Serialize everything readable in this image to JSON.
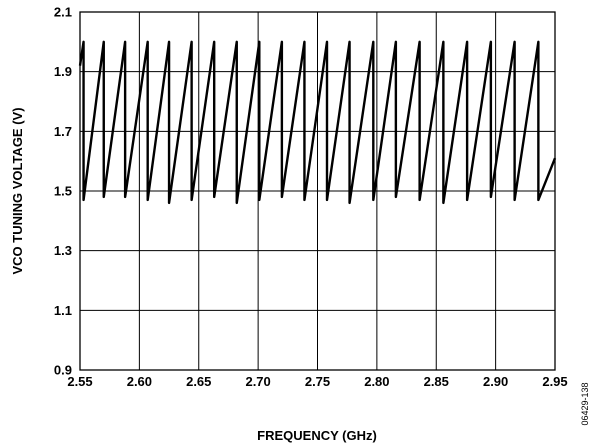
{
  "chart_data": {
    "type": "line",
    "title": "",
    "xlabel": "FREQUENCY (GHz)",
    "ylabel": "VCO TUNING VOLTAGE (V)",
    "xlim": [
      2.55,
      2.95
    ],
    "ylim": [
      0.9,
      2.1
    ],
    "x_ticks": [
      "2.55",
      "2.60",
      "2.65",
      "2.70",
      "2.75",
      "2.80",
      "2.85",
      "2.90",
      "2.95"
    ],
    "y_ticks": [
      "0.9",
      "1.1",
      "1.3",
      "1.5",
      "1.7",
      "1.9",
      "2.1"
    ],
    "grid": true,
    "legend": "none",
    "series": [
      {
        "x": [
          2.55,
          2.553,
          2.553,
          2.57,
          2.57,
          2.588,
          2.588,
          2.607,
          2.607,
          2.625,
          2.625,
          2.644,
          2.644,
          2.663,
          2.663,
          2.682,
          2.682,
          2.701,
          2.701,
          2.72,
          2.72,
          2.739,
          2.739,
          2.758,
          2.758,
          2.777,
          2.777,
          2.797,
          2.797,
          2.816,
          2.816,
          2.836,
          2.836,
          2.856,
          2.856,
          2.876,
          2.876,
          2.896,
          2.896,
          2.916,
          2.916,
          2.936,
          2.936,
          2.95
        ],
        "y": [
          1.92,
          2.0,
          1.47,
          2.0,
          1.48,
          2.0,
          1.48,
          2.0,
          1.47,
          2.0,
          1.46,
          2.0,
          1.47,
          2.0,
          1.48,
          2.0,
          1.46,
          2.0,
          1.47,
          2.0,
          1.48,
          2.0,
          1.47,
          2.0,
          1.47,
          2.0,
          1.46,
          2.0,
          1.47,
          2.0,
          1.48,
          2.0,
          1.47,
          2.0,
          1.46,
          2.0,
          1.47,
          2.0,
          1.48,
          2.0,
          1.47,
          2.0,
          1.47,
          1.61
        ]
      }
    ]
  },
  "figure_id": "06429-138"
}
